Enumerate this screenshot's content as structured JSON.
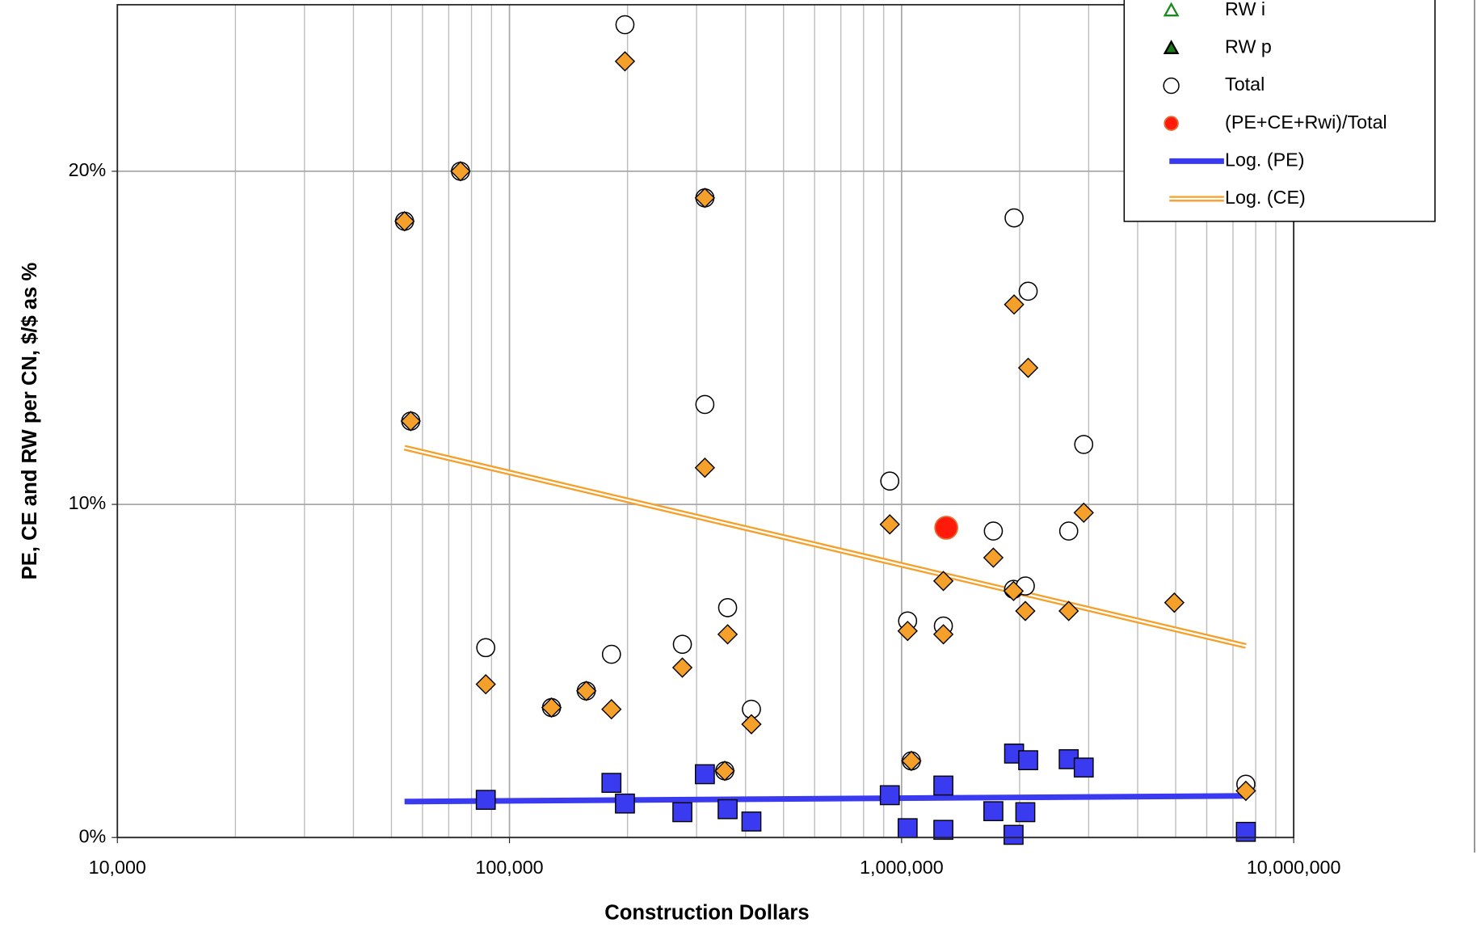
{
  "chart_data": {
    "type": "scatter",
    "x_label": "Construction Dollars",
    "y_label": "PE, CE and RW per CN, $/$ as %",
    "xscale": "log",
    "xlim": [
      10000,
      10000000
    ],
    "xticks": [
      {
        "value": 10000,
        "label": "10,000"
      },
      {
        "value": 100000,
        "label": "100,000"
      },
      {
        "value": 1000000,
        "label": "1,000,000"
      },
      {
        "value": 10000000,
        "label": "10,000,000"
      }
    ],
    "ylim": [
      0,
      25
    ],
    "yticks": [
      {
        "value": 0,
        "label": "0%"
      },
      {
        "value": 10,
        "label": "10%"
      },
      {
        "value": 20,
        "label": "20%"
      }
    ],
    "grid": true,
    "minor_grid": true,
    "legend": "top-right",
    "series": [
      {
        "name": "RW i",
        "marker": "triangle-open",
        "color": "#1a8a1a",
        "x": [],
        "values": []
      },
      {
        "name": "RW p",
        "marker": "triangle",
        "color": "#1a7a1a",
        "x": [],
        "values": []
      },
      {
        "name": "Total",
        "marker": "circle-open",
        "color": "#000000",
        "x": [
          54000,
          56000,
          75000,
          87000,
          128000,
          157000,
          182000,
          197000,
          276000,
          315000,
          315000,
          354000,
          360000,
          414000,
          933000,
          1036000,
          1059000,
          1278000,
          1714000,
          1936000,
          1930000,
          2068000,
          2103000,
          2668000,
          2914000,
          7550000
        ],
        "values": [
          18.5,
          12.5,
          20.0,
          5.7,
          3.9,
          4.4,
          5.5,
          24.4,
          5.8,
          19.2,
          13.0,
          2.0,
          6.9,
          3.85,
          10.7,
          6.5,
          2.3,
          6.35,
          9.2,
          18.6,
          7.45,
          7.55,
          16.4,
          9.2,
          11.8,
          1.6
        ]
      },
      {
        "name": "(PE+CE+Rwi)/Total",
        "marker": "circle-big",
        "color": "#ff1a0a",
        "x": [
          1300000
        ],
        "values": [
          9.3
        ]
      },
      {
        "name": "Log. (PE)",
        "marker": "line",
        "color": "#3a3af0",
        "x": [
          54000,
          7550000
        ],
        "values": [
          1.08,
          1.25
        ]
      },
      {
        "name": "Log. (CE)",
        "marker": "double-line",
        "color": "#f5a02a",
        "x": [
          54000,
          7550000
        ],
        "values": [
          11.7,
          5.75
        ]
      },
      {
        "marker": "diamond",
        "color": "#f5a02a",
        "x": [
          54000,
          56000,
          75000,
          87000,
          128000,
          157000,
          182000,
          197000,
          276000,
          315000,
          315000,
          354000,
          360000,
          414000,
          933000,
          1036000,
          1059000,
          1278000,
          1278000,
          1714000,
          1936000,
          1930000,
          2068000,
          2103000,
          2668000,
          2914000,
          4960000,
          7550000
        ],
        "values": [
          18.5,
          12.5,
          20.0,
          4.6,
          3.9,
          4.4,
          3.85,
          23.3,
          5.1,
          19.2,
          11.1,
          2.0,
          6.1,
          3.4,
          9.4,
          6.2,
          2.3,
          7.7,
          6.1,
          8.4,
          16.0,
          7.4,
          6.8,
          14.1,
          6.8,
          9.75,
          7.05,
          1.4
        ]
      },
      {
        "marker": "square",
        "color": "#3a3af0",
        "x": [
          87000,
          182000,
          197000,
          276000,
          315000,
          360000,
          414000,
          933000,
          1036000,
          1278000,
          1278000,
          1714000,
          1930000,
          1936000,
          2068000,
          2103000,
          2668000,
          2914000,
          7550000
        ],
        "values": [
          1.13,
          1.64,
          1.02,
          0.76,
          1.9,
          0.85,
          0.48,
          1.27,
          0.28,
          1.56,
          0.23,
          0.79,
          0.08,
          2.52,
          0.76,
          2.32,
          2.35,
          2.1,
          0.17
        ]
      }
    ]
  }
}
